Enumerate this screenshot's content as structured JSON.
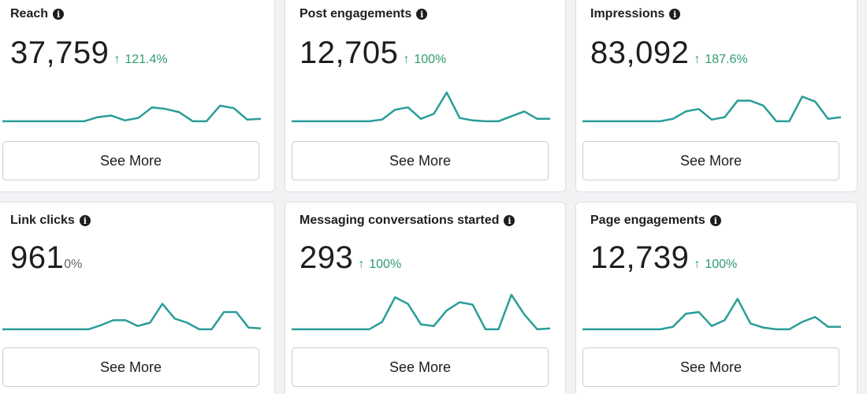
{
  "colors": {
    "accent": "#2a9d98",
    "positive": "#2f9c6e",
    "text": "#1c1e21"
  },
  "icons": {
    "info": "info-icon",
    "up_arrow": "arrow-up-icon"
  },
  "cards": [
    {
      "title": "Reach",
      "value": "37,759",
      "change": "121.4%",
      "trend": "up",
      "button": "See More",
      "spark": [
        3,
        3,
        3,
        3,
        3,
        3,
        3,
        8,
        10,
        4,
        7,
        20,
        18,
        14,
        3,
        3,
        22,
        19,
        5,
        6
      ]
    },
    {
      "title": "Post engagements",
      "value": "12,705",
      "change": "100%",
      "trend": "up",
      "button": "See More",
      "spark": [
        3,
        3,
        3,
        3,
        3,
        3,
        3,
        5,
        17,
        20,
        6,
        12,
        38,
        7,
        4,
        3,
        3,
        9,
        15,
        6,
        6
      ]
    },
    {
      "title": "Impressions",
      "value": "83,092",
      "change": "187.6%",
      "trend": "up",
      "button": "See More",
      "spark": [
        3,
        3,
        3,
        3,
        3,
        3,
        3,
        6,
        15,
        18,
        5,
        8,
        28,
        28,
        22,
        3,
        3,
        33,
        27,
        6,
        8
      ]
    },
    {
      "title": "Link clicks",
      "value": "961",
      "change": "0%",
      "trend": "none",
      "button": "See More",
      "spark": [
        3,
        3,
        3,
        3,
        3,
        3,
        3,
        3,
        8,
        14,
        14,
        7,
        11,
        34,
        16,
        11,
        3,
        3,
        24,
        24,
        5,
        4
      ]
    },
    {
      "title": "Messaging conversations started",
      "value": "293",
      "change": "100%",
      "trend": "up",
      "button": "See More",
      "spark": [
        3,
        3,
        3,
        3,
        3,
        3,
        3,
        12,
        42,
        34,
        9,
        7,
        26,
        36,
        33,
        3,
        3,
        45,
        21,
        3,
        4
      ]
    },
    {
      "title": "Page engagements",
      "value": "12,739",
      "change": "100%",
      "trend": "up",
      "button": "See More",
      "spark": [
        3,
        3,
        3,
        3,
        3,
        3,
        3,
        6,
        22,
        24,
        7,
        14,
        40,
        10,
        5,
        3,
        3,
        12,
        18,
        6,
        6
      ]
    }
  ]
}
